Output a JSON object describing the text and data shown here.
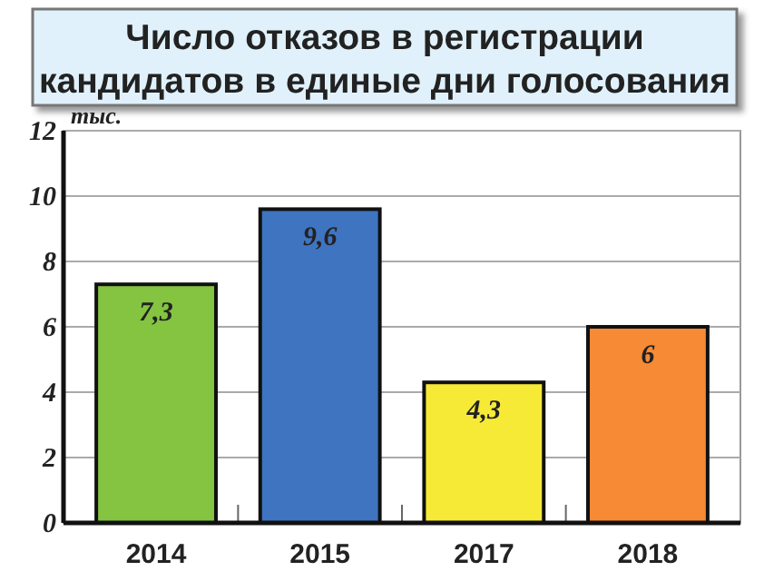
{
  "chart_data": {
    "type": "bar",
    "title": "Число отказов в регистрации\nкандидатов в единые дни голосования",
    "ylabel": "тыс.",
    "categories": [
      "2014",
      "2015",
      "2017",
      "2018"
    ],
    "values": [
      7.3,
      9.6,
      4.3,
      6
    ],
    "colors": [
      "#84c441",
      "#3f74c0",
      "#f6ea37",
      "#f68a35"
    ],
    "value_labels": [
      "7,3",
      "9,6",
      "4,3",
      "6"
    ],
    "ylim": [
      0,
      12
    ],
    "yticks": [
      0,
      2,
      4,
      6,
      8,
      10,
      12
    ],
    "grid": "y"
  }
}
